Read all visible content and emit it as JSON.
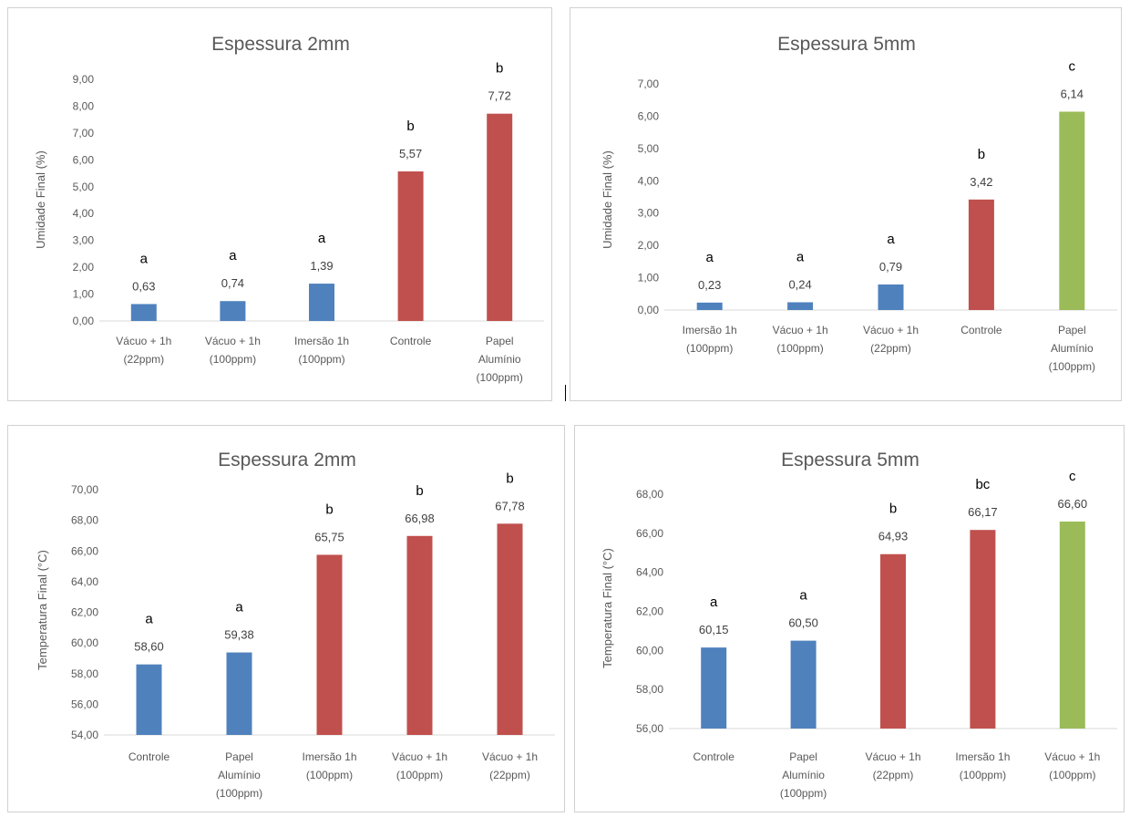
{
  "chart_data": [
    {
      "type": "bar",
      "title": "Espessura 2mm",
      "ylabel": "Umidade Final (%)",
      "ylim": [
        0,
        9
      ],
      "ytick_step": 1,
      "ytick_labels": [
        "0,00",
        "1,00",
        "2,00",
        "3,00",
        "4,00",
        "5,00",
        "6,00",
        "7,00",
        "8,00",
        "9,00"
      ],
      "grid": false,
      "categories": [
        [
          "Vácuo + 1h",
          "(22ppm)"
        ],
        [
          "Vácuo + 1h",
          "(100ppm)"
        ],
        [
          "Imersão 1h",
          "(100ppm)"
        ],
        [
          "Controle"
        ],
        [
          "Papel",
          "Alumínio",
          "(100ppm)"
        ]
      ],
      "values": [
        0.63,
        0.74,
        1.39,
        5.57,
        7.72
      ],
      "value_labels": [
        "0,63",
        "0,74",
        "1,39",
        "5,57",
        "7,72"
      ],
      "letters": [
        "a",
        "a",
        "a",
        "b",
        "b"
      ],
      "bar_colors": [
        "#4f81bd",
        "#4f81bd",
        "#4f81bd",
        "#c0504d",
        "#c0504d"
      ]
    },
    {
      "type": "bar",
      "title": "Espessura 5mm",
      "ylabel": "Umidade Final (%)",
      "ylim": [
        0,
        7
      ],
      "ytick_step": 1,
      "ytick_labels": [
        "0,00",
        "1,00",
        "2,00",
        "3,00",
        "4,00",
        "5,00",
        "6,00",
        "7,00"
      ],
      "grid": false,
      "categories": [
        [
          "Imersão 1h",
          "(100ppm)"
        ],
        [
          "Vácuo + 1h",
          "(100ppm)"
        ],
        [
          "Vácuo + 1h",
          "(22ppm)"
        ],
        [
          "Controle"
        ],
        [
          "Papel",
          "Alumínio",
          "(100ppm)"
        ]
      ],
      "values": [
        0.23,
        0.24,
        0.79,
        3.42,
        6.14
      ],
      "value_labels": [
        "0,23",
        "0,24",
        "0,79",
        "3,42",
        "6,14"
      ],
      "letters": [
        "a",
        "a",
        "a",
        "b",
        "c"
      ],
      "bar_colors": [
        "#4f81bd",
        "#4f81bd",
        "#4f81bd",
        "#c0504d",
        "#9bbb59"
      ]
    },
    {
      "type": "bar",
      "title": "Espessura 2mm",
      "ylabel": "Temperatura Final (°C)",
      "ylim": [
        54,
        70
      ],
      "ytick_step": 2,
      "ytick_labels": [
        "54,00",
        "56,00",
        "58,00",
        "60,00",
        "62,00",
        "64,00",
        "66,00",
        "68,00",
        "70,00"
      ],
      "grid": false,
      "categories": [
        [
          "Controle"
        ],
        [
          "Papel",
          "Alumínio",
          "(100ppm)"
        ],
        [
          "Imersão 1h",
          "(100ppm)"
        ],
        [
          "Vácuo + 1h",
          "(100ppm)"
        ],
        [
          "Vácuo + 1h",
          "(22ppm)"
        ]
      ],
      "values": [
        58.6,
        59.38,
        65.75,
        66.98,
        67.78
      ],
      "value_labels": [
        "58,60",
        "59,38",
        "65,75",
        "66,98",
        "67,78"
      ],
      "letters": [
        "a",
        "a",
        "b",
        "b",
        "b"
      ],
      "bar_colors": [
        "#4f81bd",
        "#4f81bd",
        "#c0504d",
        "#c0504d",
        "#c0504d"
      ]
    },
    {
      "type": "bar",
      "title": "Espessura 5mm",
      "ylabel": "Temperatura Final (°C)",
      "ylim": [
        56,
        68
      ],
      "ytick_step": 2,
      "ytick_labels": [
        "56,00",
        "58,00",
        "60,00",
        "62,00",
        "64,00",
        "66,00",
        "68,00"
      ],
      "grid": false,
      "categories": [
        [
          "Controle"
        ],
        [
          "Papel",
          "Alumínio",
          "(100ppm)"
        ],
        [
          "Vácuo + 1h",
          "(22ppm)"
        ],
        [
          "Imersão 1h",
          "(100ppm)"
        ],
        [
          "Vácuo + 1h",
          "(100ppm)"
        ]
      ],
      "values": [
        60.15,
        60.5,
        64.93,
        66.17,
        66.6
      ],
      "value_labels": [
        "60,15",
        "60,50",
        "64,93",
        "66,17",
        "66,60"
      ],
      "letters": [
        "a",
        "a",
        "b",
        "bc",
        "c"
      ],
      "bar_colors": [
        "#4f81bd",
        "#4f81bd",
        "#c0504d",
        "#c0504d",
        "#9bbb59"
      ]
    }
  ]
}
